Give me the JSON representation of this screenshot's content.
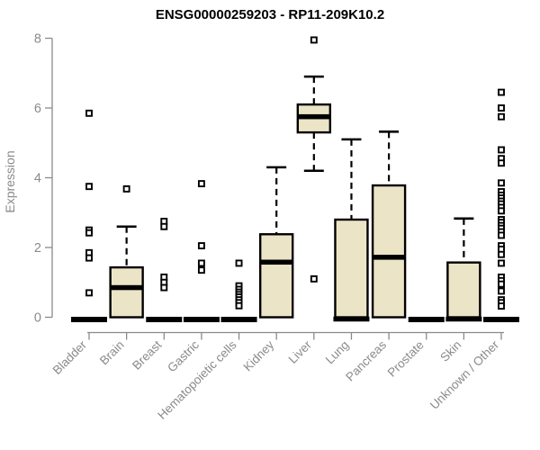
{
  "chart_data": {
    "type": "boxplot",
    "title": "ENSG00000259203 - RP11-209K10.2",
    "ylabel": "Expression",
    "xlabel": "",
    "ylim": [
      0,
      8.2
    ],
    "yticks": [
      0,
      2,
      4,
      6,
      8
    ],
    "grid": false,
    "legend": "none",
    "categories": [
      "Bladder",
      "Brain",
      "Breast",
      "Gastric",
      "Hematopoietic cells",
      "Kidney",
      "Liver",
      "Lung",
      "Pancreas",
      "Prostate",
      "Skin",
      "Unknown / Other"
    ],
    "series": [
      {
        "category": "Bladder",
        "q1": 0,
        "median": 0,
        "q3": 0,
        "whisker_low": 0,
        "whisker_high": 0,
        "outliers": [
          5.85,
          3.75,
          2.5,
          2.42,
          1.85,
          1.7,
          0.7
        ]
      },
      {
        "category": "Brain",
        "q1": 0,
        "median": 0.85,
        "q3": 1.43,
        "whisker_low": 0,
        "whisker_high": 2.6,
        "outliers": [
          3.68
        ]
      },
      {
        "category": "Breast",
        "q1": 0,
        "median": 0,
        "q3": 0,
        "whisker_low": 0,
        "whisker_high": 0,
        "outliers": [
          2.75,
          2.6,
          1.15,
          1.0,
          0.85
        ]
      },
      {
        "category": "Gastric",
        "q1": 0,
        "median": 0,
        "q3": 0,
        "whisker_low": 0,
        "whisker_high": 0,
        "outliers": [
          3.83,
          2.05,
          1.55,
          1.35
        ]
      },
      {
        "category": "Hematopoietic cells",
        "q1": 0,
        "median": 0,
        "q3": 0,
        "whisker_low": 0,
        "whisker_high": 0,
        "outliers": [
          1.55,
          0.9,
          0.8,
          0.72,
          0.65,
          0.58,
          0.5,
          0.42,
          0.33
        ]
      },
      {
        "category": "Kidney",
        "q1": 0,
        "median": 1.58,
        "q3": 2.38,
        "whisker_low": 0,
        "whisker_high": 4.3,
        "outliers": []
      },
      {
        "category": "Liver",
        "q1": 5.3,
        "median": 5.75,
        "q3": 6.1,
        "whisker_low": 4.2,
        "whisker_high": 6.9,
        "outliers": [
          7.95,
          1.1
        ]
      },
      {
        "category": "Lung",
        "q1": 0,
        "median": 0,
        "q3": 2.8,
        "whisker_low": 0,
        "whisker_high": 5.1,
        "outliers": []
      },
      {
        "category": "Pancreas",
        "q1": 0,
        "median": 1.72,
        "q3": 3.78,
        "whisker_low": 0,
        "whisker_high": 5.32,
        "outliers": []
      },
      {
        "category": "Prostate",
        "q1": 0,
        "median": 0,
        "q3": 0,
        "whisker_low": 0,
        "whisker_high": 0,
        "outliers": []
      },
      {
        "category": "Skin",
        "q1": 0,
        "median": 0,
        "q3": 1.57,
        "whisker_low": 0,
        "whisker_high": 2.83,
        "outliers": []
      },
      {
        "category": "Unknown / Other",
        "q1": 0,
        "median": 0,
        "q3": 0,
        "whisker_low": 0,
        "whisker_high": 0,
        "outliers": [
          6.45,
          6.0,
          5.75,
          4.8,
          4.55,
          4.42,
          3.85,
          3.6,
          3.5,
          3.42,
          3.33,
          3.25,
          3.15,
          3.05,
          2.8,
          2.72,
          2.63,
          2.55,
          2.45,
          2.35,
          2.05,
          1.95,
          1.8,
          1.55,
          1.15,
          1.05,
          0.95,
          0.75,
          0.5,
          0.42,
          0.32
        ]
      }
    ],
    "colors": {
      "box_fill": "#ece4c6",
      "box_stroke": "#000000",
      "median": "#000000",
      "outlier_fill": "#ffffff",
      "axis": "#8a8a8a",
      "title": "#000000",
      "background": "#ffffff"
    }
  }
}
